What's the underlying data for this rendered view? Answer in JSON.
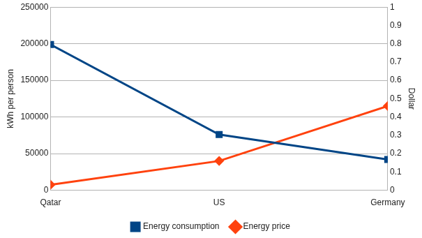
{
  "chart_data": {
    "type": "line",
    "categories": [
      "Qatar",
      "US",
      "Germany"
    ],
    "y_label": "kWh per person",
    "y2_label": "Dollar",
    "series": [
      {
        "name": "Energy consumption",
        "color": "#004586",
        "marker": "square",
        "values": [
          199000,
          76000,
          42000
        ]
      },
      {
        "name": "Energy price",
        "color": "#ff420e",
        "marker": "diamond",
        "axis": "y2",
        "values": [
          0.03,
          0.16,
          0.46
        ]
      }
    ],
    "ylim": [
      0,
      250000
    ],
    "yticks": [
      0,
      50000,
      100000,
      150000,
      200000,
      250000
    ],
    "y2lim": [
      0,
      1
    ],
    "y2ticks": [
      0,
      0.1,
      0.2,
      0.3,
      0.4,
      0.5,
      0.6,
      0.7,
      0.8,
      0.9,
      1
    ],
    "grid": true,
    "legend": "bottom"
  }
}
